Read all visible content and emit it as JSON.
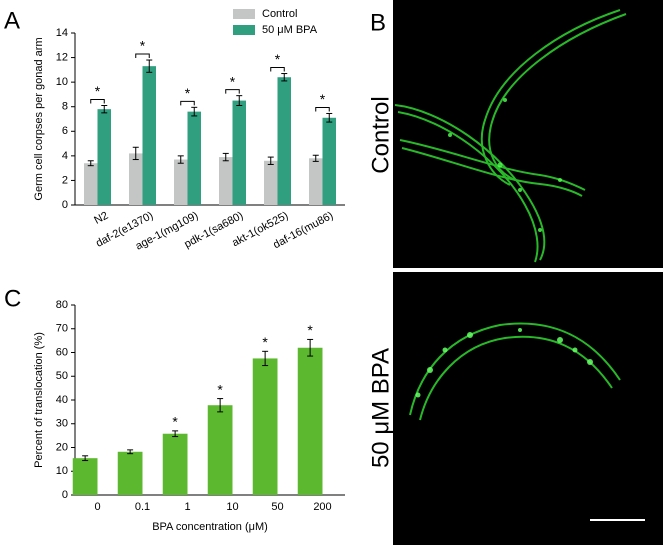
{
  "panels": {
    "A": "A",
    "B": "B",
    "C": "C"
  },
  "image_labels": [
    "Control",
    "50 μM BPA"
  ],
  "chart_data": [
    {
      "type": "bar",
      "y_label": "Germ cell corpses per gonad arm",
      "categories": [
        "N2",
        "daf-2(e1370)",
        "age-1(mg109)",
        "pdk-1(sa680)",
        "akt-1(ok525)",
        "daf-16(mu86)"
      ],
      "series": [
        {
          "name": "Control",
          "color": "#c4c6c6",
          "values": [
            3.4,
            4.2,
            3.7,
            3.9,
            3.6,
            3.8
          ],
          "errors": [
            0.2,
            0.5,
            0.3,
            0.3,
            0.3,
            0.25
          ]
        },
        {
          "name": "50 μM BPA",
          "color": "#2f9f7f",
          "values": [
            7.8,
            11.3,
            7.6,
            8.5,
            10.4,
            7.1
          ],
          "errors": [
            0.3,
            0.5,
            0.35,
            0.4,
            0.3,
            0.35
          ]
        }
      ],
      "annotations": [
        "*",
        "*",
        "*",
        "*",
        "*",
        "*"
      ],
      "ylim": [
        0,
        14
      ],
      "yticks": [
        0,
        2,
        4,
        6,
        8,
        10,
        12,
        14
      ]
    },
    {
      "type": "bar",
      "x_label": "BPA concentration (μM)",
      "y_label": "Percent of translocation (%)",
      "categories": [
        "0",
        "0.1",
        "1",
        "10",
        "50",
        "200"
      ],
      "values": [
        15.5,
        18.2,
        25.8,
        37.8,
        57.5,
        62
      ],
      "errors": [
        1,
        0.8,
        1.2,
        2.8,
        3,
        3.5
      ],
      "color": "#5cb82e",
      "annotations": [
        null,
        null,
        "*",
        "*",
        "*",
        "*"
      ],
      "ylim": [
        0,
        80
      ],
      "yticks": [
        0,
        10,
        20,
        30,
        40,
        50,
        60,
        70,
        80
      ]
    }
  ]
}
